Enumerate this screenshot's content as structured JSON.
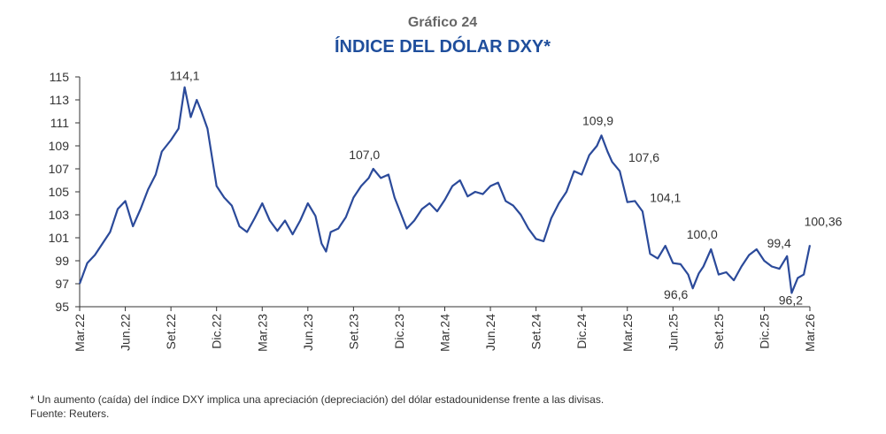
{
  "chart_data": {
    "type": "line",
    "subtitle": "Gráfico 24",
    "title": "ÍNDICE DEL DÓLAR DXY*",
    "footnote": "* Un aumento (caída) del índice DXY implica una apreciación (depreciación) del dólar estadounidense frente a las divisas.",
    "source": "Fuente: Reuters.",
    "xlim": [
      0,
      48
    ],
    "xticks": [
      {
        "value": 0,
        "label": "Mar.22"
      },
      {
        "value": 3,
        "label": "Jun.22"
      },
      {
        "value": 6,
        "label": "Set.22"
      },
      {
        "value": 9,
        "label": "Dic.22"
      },
      {
        "value": 12,
        "label": "Mar.23"
      },
      {
        "value": 15,
        "label": "Jun.23"
      },
      {
        "value": 18,
        "label": "Set.23"
      },
      {
        "value": 21,
        "label": "Dic.23"
      },
      {
        "value": 24,
        "label": "Mar.24"
      },
      {
        "value": 27,
        "label": "Jun.24"
      },
      {
        "value": 30,
        "label": "Set.24"
      },
      {
        "value": 33,
        "label": "Dic.24"
      },
      {
        "value": 36,
        "label": "Mar.25"
      },
      {
        "value": 39,
        "label": "Jun.25"
      },
      {
        "value": 42,
        "label": "Set.25"
      },
      {
        "value": 45,
        "label": "Dic.25"
      },
      {
        "value": 48,
        "label": "Mar.26"
      }
    ],
    "ylim": [
      95,
      115
    ],
    "yticks": [
      95,
      97,
      99,
      101,
      103,
      105,
      107,
      109,
      111,
      113,
      115
    ],
    "grid": false,
    "series": [
      {
        "color": "#2b4a9a",
        "x": [
          0,
          0.5,
          1,
          1.5,
          2,
          2.5,
          3,
          3.5,
          4,
          4.5,
          5,
          5.4,
          6,
          6.5,
          6.9,
          7.3,
          7.7,
          8,
          8.4,
          9,
          9.5,
          10,
          10.5,
          11,
          11.5,
          12,
          12.5,
          13,
          13.5,
          14,
          14.5,
          15,
          15.5,
          15.9,
          16.2,
          16.5,
          17,
          17.5,
          18,
          18.5,
          19,
          19.3,
          19.8,
          20.3,
          20.7,
          21,
          21.5,
          22,
          22.5,
          23,
          23.5,
          24,
          24.5,
          25,
          25.5,
          26,
          26.5,
          27,
          27.5,
          28,
          28.5,
          29,
          29.5,
          30,
          30.5,
          31,
          31.5,
          32,
          32.5,
          33,
          33.5,
          34,
          34.3,
          34.7,
          35,
          35.5,
          36,
          36.5,
          37,
          37.5,
          38,
          38.5,
          39,
          39.5,
          40,
          40.3,
          40.7,
          41,
          41.5,
          42,
          42.5,
          43,
          43.5,
          44,
          44.5,
          45,
          45.5,
          46,
          46.5,
          46.8,
          47.2,
          47.6,
          48
        ],
        "values": [
          97.0,
          98.8,
          99.5,
          100.5,
          101.5,
          103.5,
          104.2,
          102.0,
          103.5,
          105.2,
          106.5,
          108.5,
          109.5,
          110.5,
          114.1,
          111.5,
          113.0,
          112.0,
          110.5,
          105.5,
          104.5,
          103.8,
          102.0,
          101.5,
          102.7,
          104.0,
          102.5,
          101.6,
          102.5,
          101.3,
          102.5,
          104.0,
          102.9,
          100.5,
          99.8,
          101.5,
          101.8,
          102.8,
          104.5,
          105.5,
          106.2,
          107.0,
          106.2,
          106.5,
          104.5,
          103.5,
          101.8,
          102.5,
          103.5,
          104.0,
          103.3,
          104.3,
          105.5,
          106.0,
          104.6,
          105.0,
          104.8,
          105.5,
          105.8,
          104.2,
          103.8,
          103.0,
          101.8,
          100.9,
          100.7,
          102.7,
          104.0,
          105.0,
          106.8,
          106.5,
          108.2,
          109.0,
          109.9,
          108.5,
          107.6,
          106.8,
          104.1,
          104.2,
          103.3,
          99.6,
          99.2,
          100.3,
          98.8,
          98.7,
          97.8,
          96.6,
          97.9,
          98.5,
          100.0,
          97.8,
          98.0,
          97.3,
          98.5,
          99.5,
          100.0,
          99.0,
          98.5,
          98.3,
          99.4,
          96.2,
          97.5,
          97.8,
          100.36
        ]
      }
    ],
    "annotations": [
      {
        "label": "114,1",
        "x": 6.9,
        "value": 114.1
      },
      {
        "label": "107,0",
        "x": 19.3,
        "value": 107.0
      },
      {
        "label": "109,9",
        "x": 34.3,
        "value": 109.9
      },
      {
        "label": "107,6",
        "x": 35,
        "value": 107.6
      },
      {
        "label": "104,1",
        "x": 36,
        "value": 104.1
      },
      {
        "label": "100,0",
        "x": 41.5,
        "value": 100.0
      },
      {
        "label": "96,6",
        "x": 40.3,
        "value": 96.6
      },
      {
        "label": "99,4",
        "x": 46.5,
        "value": 99.4
      },
      {
        "label": "96,2",
        "x": 46.8,
        "value": 96.2
      },
      {
        "label": "100,36",
        "x": 48,
        "value": 100.36
      }
    ]
  }
}
